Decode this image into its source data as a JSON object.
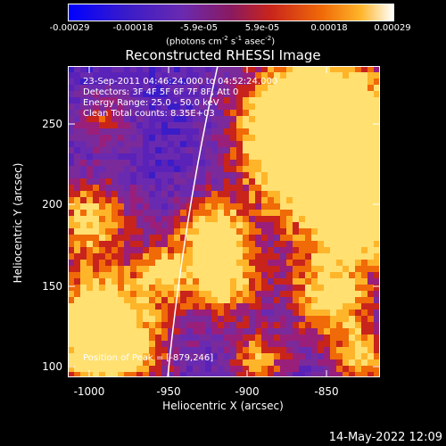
{
  "colorbar": {
    "ticks": [
      "-0.00029",
      "-0.00018",
      "-5.9e-05",
      "5.9e-05",
      "0.00018",
      "0.00029"
    ],
    "units_pre": "(photons cm",
    "units_exp1": "-2",
    "units_mid": " s",
    "units_exp2": "-1",
    "units_post": " asec",
    "units_exp3": "-2",
    "units_end": ")"
  },
  "title": "Reconstructed RHESSI Image",
  "info": {
    "line1": "23-Sep-2011 04:46:24.000 to 04:52:24.000",
    "line2": "Detectors: 3F 4F 5F 6F 7F 8F, Att 0",
    "line3": "Energy Range: 25.0 - 50.0 keV",
    "line4": "Clean     Total counts: 8.35E+03"
  },
  "peak": "Position of Peak = [-879,246]",
  "axes": {
    "xlabel": "Heliocentric X (arcsec)",
    "ylabel": "Heliocentric Y (arcsec)",
    "xticks": [
      "-1000",
      "-950",
      "-900",
      "-850"
    ],
    "yticks": [
      "250",
      "200",
      "150",
      "100"
    ]
  },
  "timestamp": "14-May-2022 12:09",
  "colors": {
    "background": "#000000",
    "colormap": [
      "#0000ff",
      "#3a1cc8",
      "#6a2ab0",
      "#9a1f7a",
      "#c8241c",
      "#f06a08",
      "#ffb52a",
      "#ffffff"
    ]
  }
}
